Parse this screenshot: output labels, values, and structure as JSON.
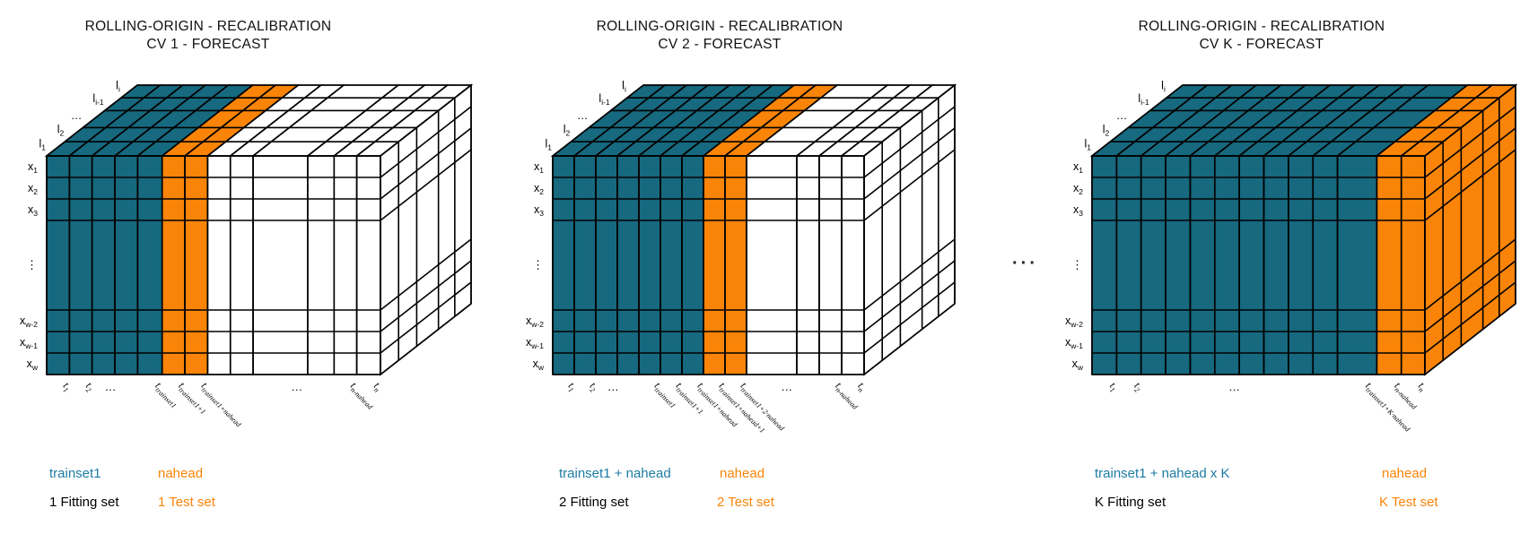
{
  "canvas": {
    "background": "#ffffff"
  },
  "colors": {
    "train_fill": "#16697f",
    "test_fill": "#f98407",
    "future_fill": "#ffffff",
    "grid_line": "#000000",
    "train_text": "#1c7ba3",
    "test_text": "#f98407",
    "caption_text": "#000000",
    "title_text": "#111111"
  },
  "separator_dots": "···",
  "cubes": [
    {
      "title_line1": "ROLLING-ORIGIN - RECALIBRATION",
      "title_line2": "CV 1 - FORECAST",
      "row_labels": [
        {
          "base": "x",
          "sub": "1"
        },
        {
          "base": "x",
          "sub": "2"
        },
        {
          "base": "x",
          "sub": "3"
        },
        {
          "base": "⋮",
          "sub": ""
        },
        {
          "base": "x",
          "sub": "w-2"
        },
        {
          "base": "x",
          "sub": "w-1"
        },
        {
          "base": "x",
          "sub": "w"
        }
      ],
      "depth_labels": [
        {
          "base": "l",
          "sub": "1"
        },
        {
          "base": "l",
          "sub": "2"
        },
        {
          "base": "…",
          "sub": ""
        },
        {
          "base": "l",
          "sub": "i-1"
        },
        {
          "base": "l",
          "sub": "i"
        }
      ],
      "col_groups": [
        {
          "role": "train",
          "n": 5
        },
        {
          "role": "test",
          "n": 2
        },
        {
          "role": "future",
          "n": 6
        }
      ],
      "right_face": "future",
      "time_labels": [
        {
          "col": 1,
          "base": "t",
          "sub": "1"
        },
        {
          "col": 2,
          "base": "t",
          "sub": "2"
        },
        {
          "col": 3,
          "base": "…",
          "sub": ""
        },
        {
          "col": 5,
          "base": "t",
          "sub": "trainset1"
        },
        {
          "col": 6,
          "base": "t",
          "sub": "trainset1+1"
        },
        {
          "col": 7,
          "base": "t",
          "sub": "trainset1+nahead"
        },
        {
          "col": 10,
          "base": "…",
          "sub": ""
        },
        {
          "col": 12,
          "base": "t",
          "sub": "n-nahead"
        },
        {
          "col": 13,
          "base": "t",
          "sub": "n"
        }
      ],
      "legend": {
        "train": "trainset1",
        "test": "nahead",
        "train_caption": "1 Fitting set",
        "test_caption": "1 Test set"
      }
    },
    {
      "title_line1": "ROLLING-ORIGIN - RECALIBRATION",
      "title_line2": "CV 2 - FORECAST",
      "row_labels": [
        {
          "base": "x",
          "sub": "1"
        },
        {
          "base": "x",
          "sub": "2"
        },
        {
          "base": "x",
          "sub": "3"
        },
        {
          "base": "⋮",
          "sub": ""
        },
        {
          "base": "x",
          "sub": "w-2"
        },
        {
          "base": "x",
          "sub": "w-1"
        },
        {
          "base": "x",
          "sub": "w"
        }
      ],
      "depth_labels": [
        {
          "base": "l",
          "sub": "1"
        },
        {
          "base": "l",
          "sub": "2"
        },
        {
          "base": "…",
          "sub": ""
        },
        {
          "base": "l",
          "sub": "i-1"
        },
        {
          "base": "l",
          "sub": "i"
        }
      ],
      "col_groups": [
        {
          "role": "train",
          "n": 7
        },
        {
          "role": "test",
          "n": 2
        },
        {
          "role": "future",
          "n": 4
        }
      ],
      "right_face": "future",
      "time_labels": [
        {
          "col": 1,
          "base": "t",
          "sub": "1"
        },
        {
          "col": 2,
          "base": "t",
          "sub": "2"
        },
        {
          "col": 3,
          "base": "…",
          "sub": ""
        },
        {
          "col": 5,
          "base": "t",
          "sub": "trainset1"
        },
        {
          "col": 6,
          "base": "t",
          "sub": "trainset1+1"
        },
        {
          "col": 7,
          "base": "t",
          "sub": "trainset1+nahead"
        },
        {
          "col": 8,
          "base": "t",
          "sub": "trainset1+nahead+1"
        },
        {
          "col": 9,
          "base": "t",
          "sub": "trainset1+2·nahead"
        },
        {
          "col": 10,
          "base": "…",
          "sub": ""
        },
        {
          "col": 12,
          "base": "t",
          "sub": "n-nahead"
        },
        {
          "col": 13,
          "base": "t",
          "sub": "n"
        }
      ],
      "legend": {
        "train": "trainset1 + nahead",
        "test": "nahead",
        "train_caption": "2 Fitting set",
        "test_caption": "2 Test set"
      }
    },
    {
      "title_line1": "ROLLING-ORIGIN - RECALIBRATION",
      "title_line2": "CV K - FORECAST",
      "row_labels": [
        {
          "base": "x",
          "sub": "1"
        },
        {
          "base": "x",
          "sub": "2"
        },
        {
          "base": "x",
          "sub": "3"
        },
        {
          "base": "⋮",
          "sub": ""
        },
        {
          "base": "x",
          "sub": "w-2"
        },
        {
          "base": "x",
          "sub": "w-1"
        },
        {
          "base": "x",
          "sub": "w"
        }
      ],
      "depth_labels": [
        {
          "base": "l",
          "sub": "1"
        },
        {
          "base": "l",
          "sub": "2"
        },
        {
          "base": "…",
          "sub": ""
        },
        {
          "base": "l",
          "sub": "i-1"
        },
        {
          "base": "l",
          "sub": "i"
        }
      ],
      "col_groups": [
        {
          "role": "train",
          "n": 11
        },
        {
          "role": "test",
          "n": 2
        }
      ],
      "right_face": "test",
      "time_labels": [
        {
          "col": 1,
          "base": "t",
          "sub": "1"
        },
        {
          "col": 2,
          "base": "t",
          "sub": "2"
        },
        {
          "col": 6,
          "base": "…",
          "sub": ""
        },
        {
          "col": 11,
          "base": "t",
          "sub": "trainset1+K·nahead"
        },
        {
          "col": 12,
          "base": "t",
          "sub": "n-nahead"
        },
        {
          "col": 13,
          "base": "t",
          "sub": "n"
        }
      ],
      "legend": {
        "train": "trainset1 + nahead x K",
        "test": "nahead",
        "train_caption": "K Fitting set",
        "test_caption": "K Test set"
      }
    }
  ]
}
